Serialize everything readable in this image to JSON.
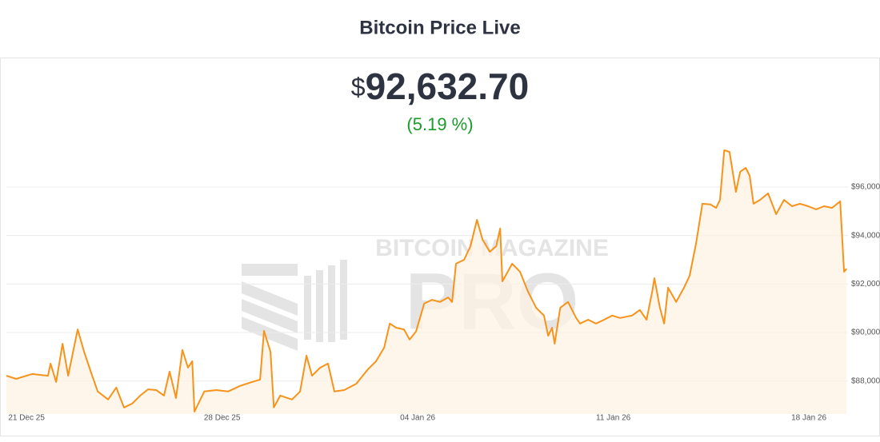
{
  "chart_data": {
    "type": "line",
    "title": "Bitcoin Price Live",
    "price_symbol": "$",
    "price": "92,632.70",
    "change": "(5.19 %)",
    "watermark": {
      "line1": "BITCOIN MAGAZINE",
      "line2": "PRO"
    },
    "color": "#f7931a",
    "area_color": "#fdf2e4",
    "grid": true,
    "x": [
      -0.72,
      -0.37,
      0.2,
      0.77,
      0.86,
      1.06,
      1.29,
      1.49,
      1.83,
      2.06,
      2.35,
      2.55,
      2.92,
      3.21,
      3.49,
      3.78,
      4.07,
      4.35,
      4.64,
      4.92,
      5.12,
      5.35,
      5.58,
      5.78,
      5.93,
      6.01,
      6.36,
      6.79,
      7.21,
      7.64,
      8.07,
      8.36,
      8.5,
      8.73,
      8.85,
      9.08,
      9.5,
      9.79,
      10.02,
      10.22,
      10.51,
      10.79,
      11.02,
      11.37,
      11.8,
      12.22,
      12.51,
      12.8,
      13.0,
      13.23,
      13.51,
      13.71,
      13.94,
      14.23,
      14.51,
      14.8,
      15.09,
      15.23,
      15.37,
      15.66,
      15.89,
      16.12,
      16.32,
      16.58,
      16.81,
      16.95,
      17.03,
      17.38,
      17.66,
      17.95,
      18.24,
      18.52,
      18.67,
      18.81,
      18.9,
      19.1,
      19.38,
      19.67,
      19.81,
      20.1,
      20.38,
      20.67,
      20.96,
      21.24,
      21.67,
      21.95,
      22.19,
      22.39,
      22.47,
      22.67,
      22.82,
      22.96,
      23.25,
      23.53,
      23.73,
      23.96,
      24.19,
      24.48,
      24.68,
      24.82,
      24.97,
      25.16,
      25.39,
      25.54,
      25.74,
      25.88,
      26.02,
      26.25,
      26.54,
      26.83,
      27.11,
      27.4,
      27.68,
      27.97,
      28.26,
      28.54,
      28.83,
      29.12,
      29.26,
      29.35
    ],
    "values": [
      88220,
      88090,
      88290,
      88220,
      88720,
      87960,
      89540,
      88220,
      90130,
      89210,
      88220,
      87570,
      87240,
      87730,
      86910,
      87070,
      87400,
      87660,
      87630,
      87400,
      88390,
      87300,
      89280,
      88550,
      88820,
      86740,
      87570,
      87630,
      87570,
      87800,
      87960,
      88060,
      90070,
      89210,
      86910,
      87400,
      87240,
      87570,
      89050,
      88220,
      88550,
      88720,
      87570,
      87630,
      87890,
      88490,
      88820,
      89380,
      90370,
      90200,
      90130,
      89710,
      90040,
      91190,
      91350,
      91260,
      91450,
      91260,
      92840,
      93000,
      93560,
      94650,
      93830,
      93330,
      93560,
      94290,
      92110,
      92840,
      92510,
      91680,
      91020,
      90700,
      89870,
      90200,
      89540,
      91020,
      91260,
      90600,
      90370,
      90530,
      90370,
      90530,
      90700,
      90600,
      90700,
      90930,
      90530,
      91680,
      92240,
      91020,
      90370,
      91850,
      91260,
      91850,
      92340,
      93660,
      95310,
      95280,
      95140,
      95470,
      97520,
      97450,
      95800,
      96630,
      96790,
      96460,
      95310,
      95470,
      95740,
      94880,
      95470,
      95210,
      95310,
      95210,
      95080,
      95210,
      95140,
      95410,
      92510,
      92630
    ],
    "xlim": [
      -0.72,
      29.4
    ],
    "xticks": [
      {
        "value": 0,
        "label": "21 Dec 25"
      },
      {
        "value": 7,
        "label": "28 Dec 25"
      },
      {
        "value": 14,
        "label": "04 Jan 26"
      },
      {
        "value": 21,
        "label": "11 Jan 26"
      },
      {
        "value": 28,
        "label": "18 Jan 26"
      }
    ],
    "ylim": [
      86640,
      101240
    ],
    "yticks": [
      {
        "value": 88000,
        "label": "$88,000"
      },
      {
        "value": 90000,
        "label": "$90,000"
      },
      {
        "value": 92000,
        "label": "$92,000"
      },
      {
        "value": 94000,
        "label": "$94,000"
      },
      {
        "value": 96000,
        "label": "$96,000"
      }
    ]
  }
}
